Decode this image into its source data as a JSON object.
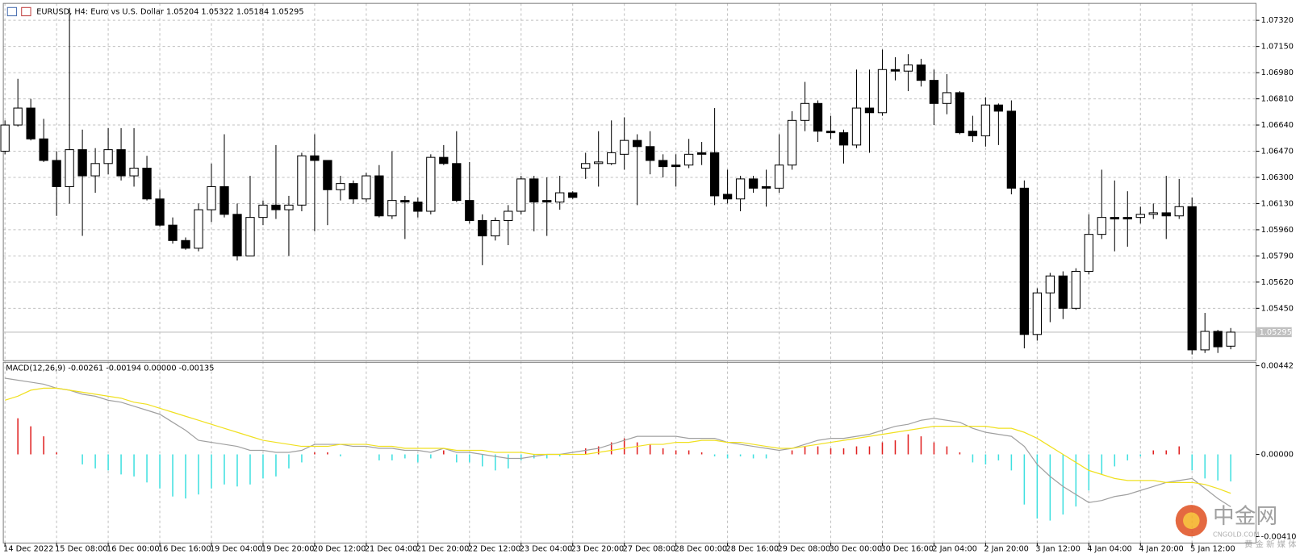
{
  "chart_data": [
    {
      "type": "candlestick",
      "title": "EURUSD, H4:  Euro vs U.S. Dollar  1.05204 1.05322 1.05184 1.05295",
      "categories": [
        "14 Dec 2022",
        null,
        null,
        null,
        "15 Dec 08:00",
        null,
        null,
        null,
        "16 Dec 00:00",
        null,
        null,
        null,
        "16 Dec 16:00",
        null,
        null,
        null,
        "19 Dec 04:00",
        null,
        null,
        null,
        "19 Dec 20:00",
        null,
        null,
        null,
        "20 Dec 12:00",
        null,
        null,
        null,
        "21 Dec 04:00",
        null,
        null,
        null,
        "21 Dec 20:00",
        null,
        null,
        null,
        "22 Dec 12:00",
        null,
        null,
        null,
        "23 Dec 04:00",
        null,
        null,
        null,
        "23 Dec 20:00",
        null,
        null,
        null,
        "27 Dec 08:00",
        null,
        null,
        null,
        "28 Dec 00:00",
        null,
        null,
        null,
        "28 Dec 16:00",
        null,
        null,
        null,
        "29 Dec 08:00",
        null,
        null,
        null,
        "30 Dec 00:00",
        null,
        null,
        null,
        "30 Dec 16:00",
        null,
        null,
        null,
        "2 Jan 04:00",
        null,
        null,
        null,
        "2 Jan 20:00",
        null,
        null,
        null,
        "3 Jan 12:00",
        null,
        null,
        null,
        "4 Jan 04:00",
        null,
        null,
        null,
        "4 Jan 20:00",
        null,
        null,
        null,
        "5 Jan 12:00",
        null,
        null,
        null
      ],
      "open": [
        1.0647,
        1.0664,
        1.0675,
        1.0655,
        1.0641,
        1.0624,
        1.0648,
        1.0631,
        1.0639,
        1.0648,
        1.0631,
        1.0636,
        1.0616,
        1.0599,
        1.0589,
        1.0584,
        1.0609,
        1.0624,
        1.0606,
        1.0579,
        1.0604,
        1.0612,
        1.0609,
        1.0612,
        1.0644,
        1.0641,
        1.0622,
        1.0626,
        1.0616,
        1.0631,
        1.0605,
        1.0615,
        1.0614,
        1.0608,
        1.0643,
        1.0639,
        1.0615,
        1.0602,
        1.0592,
        1.0602,
        1.0608,
        1.0629,
        1.0615,
        1.0614,
        1.062,
        1.0636,
        1.0639,
        1.0639,
        1.0645,
        1.0654,
        1.065,
        1.0641,
        1.0638,
        1.0638,
        1.0646,
        1.0646,
        1.0619,
        1.0616,
        1.0629,
        1.0624,
        1.0623,
        1.0638,
        1.0667,
        1.0678,
        1.066,
        1.0659,
        1.0651,
        1.0675,
        1.0672,
        1.07,
        1.0699,
        1.0703,
        1.0693,
        1.0678,
        1.0685,
        1.066,
        1.0657,
        1.0677,
        1.0673,
        1.0623,
        1.0528,
        1.0555,
        1.0566,
        1.0545,
        1.0569,
        1.0593,
        1.0604,
        1.0604,
        1.0604,
        1.0606,
        1.0607,
        1.0605,
        1.0611,
        1.0518,
        1.053,
        1.05204
      ],
      "high": [
        1.0667,
        1.0694,
        1.0681,
        1.0668,
        1.0647,
        1.074,
        1.0661,
        1.0649,
        1.0662,
        1.0662,
        1.0662,
        1.0644,
        1.0622,
        1.0604,
        1.0591,
        1.0613,
        1.0639,
        1.0658,
        1.0613,
        1.0631,
        1.0615,
        1.0651,
        1.0618,
        1.0646,
        1.0658,
        1.0641,
        1.0631,
        1.0628,
        1.0633,
        1.0638,
        1.0647,
        1.0618,
        1.0617,
        1.0645,
        1.0651,
        1.066,
        1.064,
        1.0606,
        1.0604,
        1.0612,
        1.0631,
        1.0631,
        1.063,
        1.0631,
        1.0621,
        1.0646,
        1.066,
        1.0667,
        1.0669,
        1.0658,
        1.066,
        1.0645,
        1.0645,
        1.0655,
        1.0653,
        1.0675,
        1.0635,
        1.0631,
        1.0631,
        1.0635,
        1.0658,
        1.0673,
        1.0692,
        1.068,
        1.067,
        1.0661,
        1.07,
        1.07,
        1.0713,
        1.0708,
        1.071,
        1.0707,
        1.07,
        1.0697,
        1.0686,
        1.067,
        1.0682,
        1.0678,
        1.068,
        1.0628,
        1.0558,
        1.0568,
        1.0569,
        1.0571,
        1.0606,
        1.0635,
        1.0628,
        1.0621,
        1.0611,
        1.0613,
        1.0631,
        1.0629,
        1.0617,
        1.0542,
        1.0531,
        1.05322
      ],
      "low": [
        1.0645,
        1.0663,
        1.0654,
        1.064,
        1.0605,
        1.0613,
        1.0592,
        1.062,
        1.0632,
        1.0628,
        1.0624,
        1.0615,
        1.0598,
        1.0587,
        1.0583,
        1.0582,
        1.0601,
        1.0604,
        1.0576,
        1.0579,
        1.0599,
        1.0603,
        1.0579,
        1.0608,
        1.0595,
        1.0599,
        1.0615,
        1.0613,
        1.0614,
        1.0604,
        1.0603,
        1.059,
        1.0604,
        1.0606,
        1.0638,
        1.0614,
        1.06,
        1.0573,
        1.0589,
        1.0586,
        1.0606,
        1.0595,
        1.0592,
        1.0609,
        1.0616,
        1.0629,
        1.0624,
        1.0638,
        1.0635,
        1.0612,
        1.0632,
        1.063,
        1.0624,
        1.0636,
        1.0638,
        1.0612,
        1.0613,
        1.0608,
        1.062,
        1.0611,
        1.062,
        1.0635,
        1.066,
        1.0653,
        1.0655,
        1.0639,
        1.0649,
        1.0646,
        1.067,
        1.0693,
        1.0686,
        1.0689,
        1.0664,
        1.0671,
        1.0658,
        1.0653,
        1.065,
        1.0651,
        1.0619,
        1.0519,
        1.0524,
        1.0536,
        1.0538,
        1.0544,
        1.0567,
        1.059,
        1.0582,
        1.0585,
        1.06,
        1.0603,
        1.059,
        1.0603,
        1.0515,
        1.0516,
        1.0516,
        1.05184
      ],
      "close": [
        1.0664,
        1.0675,
        1.0655,
        1.0641,
        1.0624,
        1.0648,
        1.0631,
        1.0639,
        1.0648,
        1.0631,
        1.0636,
        1.0616,
        1.0599,
        1.0589,
        1.0584,
        1.0609,
        1.0624,
        1.0606,
        1.0579,
        1.0604,
        1.0612,
        1.0609,
        1.0612,
        1.0644,
        1.0641,
        1.0622,
        1.0626,
        1.0616,
        1.0631,
        1.0605,
        1.0615,
        1.0614,
        1.0608,
        1.0643,
        1.0639,
        1.0615,
        1.0602,
        1.0592,
        1.0602,
        1.0608,
        1.0629,
        1.0614,
        1.0614,
        1.062,
        1.0617,
        1.0639,
        1.064,
        1.0646,
        1.0654,
        1.065,
        1.0641,
        1.0637,
        1.0637,
        1.0645,
        1.0645,
        1.0618,
        1.0616,
        1.0629,
        1.0623,
        1.0623,
        1.0638,
        1.0667,
        1.0678,
        1.066,
        1.0659,
        1.0651,
        1.0675,
        1.0672,
        1.07,
        1.0699,
        1.0703,
        1.0693,
        1.0678,
        1.0685,
        1.0659,
        1.0657,
        1.0677,
        1.0673,
        1.0623,
        1.0528,
        1.0555,
        1.0566,
        1.0545,
        1.0569,
        1.0593,
        1.0604,
        1.0603,
        1.0603,
        1.0606,
        1.0607,
        1.0605,
        1.0611,
        1.0518,
        1.053,
        1.052,
        1.05295
      ],
      "up_color": "#ffffff",
      "down_color": "#000000",
      "ylim": [
        1.0511,
        1.0743
      ],
      "yticks": [
        {
          "value": 1.0732,
          "label": "1.07320"
        },
        {
          "value": 1.0715,
          "label": "1.07150"
        },
        {
          "value": 1.0698,
          "label": "1.06980"
        },
        {
          "value": 1.0681,
          "label": "1.06810"
        },
        {
          "value": 1.0664,
          "label": "1.06640"
        },
        {
          "value": 1.0647,
          "label": "1.06470"
        },
        {
          "value": 1.063,
          "label": "1.06300"
        },
        {
          "value": 1.0613,
          "label": "1.06130"
        },
        {
          "value": 1.0596,
          "label": "1.05960"
        },
        {
          "value": 1.0579,
          "label": "1.05790"
        },
        {
          "value": 1.0562,
          "label": "1.05620"
        },
        {
          "value": 1.0545,
          "label": "1.05450"
        }
      ],
      "last_price": 1.05295,
      "grid": true
    },
    {
      "type": "macd",
      "title": "MACD(12,26,9) -0.00261 -0.00194 0.00000 -0.00135",
      "histogram": {
        "pos_color": "#e02020",
        "neg_color": "#40e0e0",
        "values": [
          0,
          0.0018,
          0.0014,
          0.0009,
          0.0001,
          0,
          -0.0005,
          -0.0007,
          -0.0008,
          -0.001,
          -0.0011,
          -0.0014,
          -0.0017,
          -0.0021,
          -0.0022,
          -0.002,
          -0.0017,
          -0.0015,
          -0.0016,
          -0.0015,
          -0.0012,
          -0.0011,
          -0.0007,
          -0.0004,
          0.0001,
          0.0001,
          -0.0001,
          0,
          0,
          -0.0003,
          -0.0003,
          -0.0002,
          -0.0004,
          -0.0002,
          0.0002,
          -0.0004,
          -0.0004,
          -0.0006,
          -0.0008,
          -0.0007,
          -0.0003,
          -0.0002,
          -0.0002,
          -0.0001,
          0,
          0.0003,
          0.0004,
          0.0006,
          0.0008,
          0.0006,
          0.0005,
          0.0003,
          0.0002,
          0.0002,
          0.0001,
          -0.0001,
          -0.0002,
          -0.0001,
          -0.0002,
          -0.0002,
          0,
          0.0002,
          0.0004,
          0.0004,
          0.0003,
          0.0003,
          0.0004,
          0.0004,
          0.0006,
          0.0007,
          0.001,
          0.0009,
          0.0006,
          0.0004,
          0.0001,
          -0.0004,
          -0.0005,
          -0.0003,
          -0.0008,
          -0.0025,
          -0.0032,
          -0.0033,
          -0.003,
          -0.0026,
          -0.0018,
          -0.001,
          -0.0006,
          -0.0003,
          -0.0001,
          0.0002,
          0.0002,
          0.0004,
          -0.0008,
          -0.0012,
          -0.0013,
          -0.00135
        ]
      },
      "series": [
        {
          "color": "#a0a0a0",
          "values": [
            0.0038,
            0.0037,
            0.0036,
            0.0035,
            0.0033,
            0.0032,
            0.003,
            0.0029,
            0.0027,
            0.0026,
            0.0024,
            0.0022,
            0.002,
            0.0016,
            0.0012,
            0.0007,
            0.0006,
            0.0005,
            0.0004,
            0.0002,
            0.0002,
            0.0001,
            0.0001,
            0.0002,
            0.0005,
            0.0005,
            0.0005,
            0.0004,
            0.0004,
            0.0003,
            0.0003,
            0.0002,
            0.0002,
            0.0001,
            0.0003,
            0.0001,
            0.0001,
            0,
            -0.0001,
            -0.0002,
            -0.0002,
            -0.0001,
            0,
            0,
            0.0001,
            0.0002,
            0.0003,
            0.0005,
            0.0007,
            0.0009,
            0.0009,
            0.0009,
            0.0009,
            0.0008,
            0.0008,
            0.0008,
            0.0006,
            0.0005,
            0.0004,
            0.0003,
            0.0002,
            0.0003,
            0.0005,
            0.0007,
            0.0008,
            0.0008,
            0.0009,
            0.001,
            0.0012,
            0.0014,
            0.0015,
            0.0017,
            0.0018,
            0.0017,
            0.0016,
            0.0013,
            0.0011,
            0.001,
            0.0009,
            0.0004,
            -0.0005,
            -0.0011,
            -0.0016,
            -0.002,
            -0.0024,
            -0.0023,
            -0.0021,
            -0.002,
            -0.0018,
            -0.0016,
            -0.0014,
            -0.0013,
            -0.0012,
            -0.0017,
            -0.0022,
            -0.00261
          ]
        },
        {
          "color": "#f0e020",
          "values": [
            0.0027,
            0.0029,
            0.0032,
            0.0033,
            0.0033,
            0.0032,
            0.0031,
            0.003,
            0.0029,
            0.0028,
            0.0026,
            0.0025,
            0.0023,
            0.0021,
            0.0019,
            0.0017,
            0.0015,
            0.0013,
            0.0011,
            0.0009,
            0.0007,
            0.0006,
            0.0005,
            0.0004,
            0.0004,
            0.0004,
            0.0005,
            0.0005,
            0.0005,
            0.0004,
            0.0004,
            0.0003,
            0.0003,
            0.0003,
            0.0003,
            0.0002,
            0.0002,
            0.0002,
            0.0001,
            0.0001,
            0.0001,
            0,
            0,
            0,
            0,
            0,
            0.0001,
            0.0002,
            0.0003,
            0.0004,
            0.0005,
            0.0005,
            0.0006,
            0.0006,
            0.0007,
            0.0007,
            0.0006,
            0.0006,
            0.0005,
            0.0004,
            0.0003,
            0.0003,
            0.0004,
            0.0005,
            0.0006,
            0.0007,
            0.0008,
            0.0009,
            0.001,
            0.0011,
            0.0012,
            0.0013,
            0.0014,
            0.0014,
            0.0014,
            0.0014,
            0.0014,
            0.0013,
            0.0013,
            0.0011,
            0.0008,
            0.0004,
            0,
            -0.0004,
            -0.0008,
            -0.001,
            -0.0012,
            -0.0013,
            -0.0013,
            -0.0013,
            -0.0014,
            -0.0014,
            -0.0014,
            -0.0015,
            -0.0017,
            -0.00194
          ]
        }
      ],
      "ylim": [
        -0.00442,
        0.00459
      ],
      "yticks": [
        0.00442,
        {
          "value": 0,
          "label": "0.00000"
        },
        {
          "value": -0.0041,
          "label": "-0.00410"
        }
      ]
    }
  ],
  "watermark": {
    "name": "中金网",
    "site": "CNGOLD.COM",
    "tagline": "黄 金 新 媒 体"
  }
}
